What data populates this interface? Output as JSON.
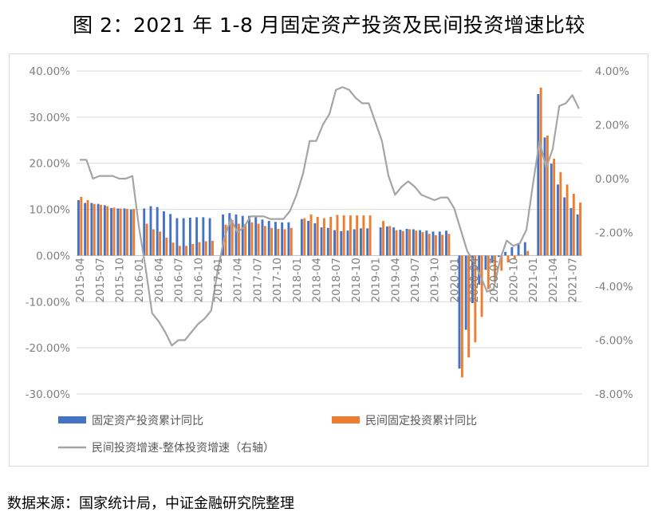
{
  "title": "图 2：2021 年 1-8 月固定资产投资及民间投资增速比较",
  "source": "数据来源：国家统计局，中证金融研究院整理",
  "chart_data": {
    "type": "bar",
    "title": "图 2：2021 年 1-8 月固定资产投资及民间投资增速比较",
    "y_left": {
      "min": -30,
      "max": 40,
      "step": 10,
      "tick_labels": [
        "-30.00%",
        "-20.00%",
        "-10.00%",
        "0.00%",
        "10.00%",
        "20.00%",
        "30.00%",
        "40.00%"
      ]
    },
    "y_right": {
      "min": -8,
      "max": 4,
      "step": 2,
      "tick_labels": [
        "-8.00%",
        "-6.00%",
        "-4.00%",
        "-2.00%",
        "0.00%",
        "2.00%",
        "4.00%"
      ]
    },
    "x_tick_labels": [
      "2015-04",
      "2015-07",
      "2015-10",
      "2016-01",
      "2016-04",
      "2016-07",
      "2016-10",
      "2017-01",
      "2017-04",
      "2017-07",
      "2017-10",
      "2018-01",
      "2018-04",
      "2018-07",
      "2018-10",
      "2019-01",
      "2019-04",
      "2019-07",
      "2019-10",
      "2020-01",
      "2020-04",
      "2020-07",
      "2020-10",
      "2021-01",
      "2021-04",
      "2021-07"
    ],
    "categories": [
      "2015-04",
      "2015-05",
      "2015-06",
      "2015-07",
      "2015-08",
      "2015-09",
      "2015-10",
      "2015-11",
      "2015-12",
      "2016-01",
      "2016-02",
      "2016-03",
      "2016-04",
      "2016-05",
      "2016-06",
      "2016-07",
      "2016-08",
      "2016-09",
      "2016-10",
      "2016-11",
      "2016-12",
      "2017-01",
      "2017-02",
      "2017-03",
      "2017-04",
      "2017-05",
      "2017-06",
      "2017-07",
      "2017-08",
      "2017-09",
      "2017-10",
      "2017-11",
      "2017-12",
      "2018-01",
      "2018-02",
      "2018-03",
      "2018-04",
      "2018-05",
      "2018-06",
      "2018-07",
      "2018-08",
      "2018-09",
      "2018-10",
      "2018-11",
      "2018-12",
      "2019-01",
      "2019-02",
      "2019-03",
      "2019-04",
      "2019-05",
      "2019-06",
      "2019-07",
      "2019-08",
      "2019-09",
      "2019-10",
      "2019-11",
      "2019-12",
      "2020-01",
      "2020-02",
      "2020-03",
      "2020-04",
      "2020-05",
      "2020-06",
      "2020-07",
      "2020-08",
      "2020-09",
      "2020-10",
      "2020-11",
      "2020-12",
      "2021-01",
      "2021-02",
      "2021-03",
      "2021-04",
      "2021-05",
      "2021-06",
      "2021-07",
      "2021-08"
    ],
    "series": [
      {
        "name": "固定资产投资累计同比",
        "axis": "left",
        "kind": "bar",
        "color": "#4472c4",
        "values": [
          12.0,
          11.4,
          11.4,
          11.2,
          10.9,
          10.3,
          10.2,
          10.2,
          10.0,
          null,
          10.2,
          10.7,
          10.5,
          9.6,
          9.0,
          8.1,
          8.1,
          8.2,
          8.3,
          8.3,
          8.1,
          null,
          8.9,
          9.2,
          8.9,
          8.6,
          8.6,
          8.3,
          7.8,
          7.5,
          7.3,
          7.2,
          7.2,
          null,
          7.9,
          7.5,
          7.0,
          6.1,
          6.0,
          5.5,
          5.3,
          5.4,
          5.7,
          5.9,
          5.9,
          null,
          6.1,
          6.3,
          6.1,
          5.6,
          5.8,
          5.7,
          5.5,
          5.4,
          5.2,
          5.2,
          5.4,
          null,
          -24.5,
          -16.1,
          -10.3,
          -6.3,
          -3.1,
          -1.6,
          -0.3,
          0.8,
          1.8,
          2.6,
          2.9,
          null,
          35.0,
          25.6,
          19.9,
          15.4,
          12.6,
          10.3,
          8.9
        ]
      },
      {
        "name": "民间固定投资累计同比",
        "axis": "left",
        "kind": "bar",
        "color": "#ed7d31",
        "values": [
          12.7,
          12.0,
          11.2,
          11.0,
          10.7,
          10.4,
          10.2,
          10.1,
          10.1,
          null,
          6.9,
          5.7,
          5.2,
          3.9,
          2.8,
          2.1,
          2.1,
          2.5,
          2.9,
          3.1,
          3.2,
          null,
          6.7,
          7.7,
          6.9,
          6.8,
          7.2,
          6.9,
          6.4,
          6.0,
          5.8,
          5.7,
          6.0,
          null,
          8.1,
          8.9,
          8.4,
          8.1,
          8.4,
          8.8,
          8.7,
          8.7,
          8.7,
          8.7,
          8.7,
          null,
          7.5,
          6.4,
          5.5,
          5.3,
          5.7,
          5.4,
          5.1,
          4.7,
          4.4,
          4.5,
          4.7,
          null,
          -26.4,
          -22.1,
          -18.8,
          -13.3,
          -7.3,
          -5.7,
          -3.3,
          -1.5,
          -0.7,
          0.2,
          1.0,
          null,
          36.4,
          26.0,
          21.0,
          18.1,
          15.4,
          13.4,
          11.5
        ]
      },
      {
        "name": "民间投资增速-整体投资增速（右轴）",
        "axis": "right",
        "kind": "line",
        "color": "#a5a5a5",
        "values": [
          0.7,
          0.7,
          0.0,
          0.1,
          0.1,
          0.1,
          0.0,
          0.0,
          0.1,
          -1.8,
          -3.3,
          -5.0,
          -5.3,
          -5.7,
          -6.2,
          -6.0,
          -6.0,
          -5.7,
          -5.4,
          -5.2,
          -4.9,
          -3.4,
          -2.2,
          -1.5,
          -2.0,
          -1.8,
          -1.4,
          -1.4,
          -1.4,
          -1.5,
          -1.5,
          -1.5,
          -1.2,
          -0.6,
          0.2,
          1.4,
          1.4,
          2.0,
          2.4,
          3.3,
          3.4,
          3.3,
          3.0,
          2.8,
          2.8,
          2.1,
          1.4,
          0.1,
          -0.6,
          -0.3,
          -0.1,
          -0.3,
          -0.6,
          -0.7,
          -0.8,
          -0.7,
          -0.7,
          -1.1,
          -1.9,
          -2.7,
          -3.1,
          -3.6,
          -4.2,
          -4.1,
          -3.0,
          -2.3,
          -2.5,
          -2.4,
          -1.9,
          -0.2,
          1.4,
          0.4,
          1.1,
          2.7,
          2.8,
          3.1,
          2.6
        ]
      }
    ],
    "grid": true,
    "legend_position": "bottom"
  }
}
